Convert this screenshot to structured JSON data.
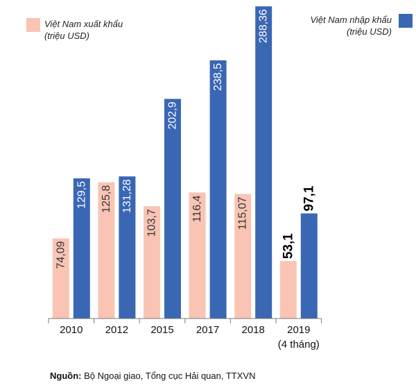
{
  "chart_data": {
    "type": "bar",
    "categories": [
      "2010",
      "2012",
      "2015",
      "2017",
      "2018",
      "2019"
    ],
    "category_sublabels": [
      "",
      "",
      "",
      "",
      "",
      "(4 tháng)"
    ],
    "series": [
      {
        "name": "Việt Nam xuất khẩu",
        "unit": "(triệu USD)",
        "color": "#f9c4b4",
        "values": [
          74.09,
          125.8,
          103.7,
          116.4,
          115.07,
          53.1
        ],
        "labels": [
          "74,09",
          "125,8",
          "103,7",
          "116,4",
          "115,07",
          "53,1"
        ]
      },
      {
        "name": "Việt Nam nhập khẩu",
        "unit": "(triệu USD)",
        "color": "#3a67b4",
        "values": [
          129.5,
          131.28,
          202.9,
          238.5,
          288.36,
          97.1
        ],
        "labels": [
          "129,5",
          "131,28",
          "202,9",
          "238,5",
          "288,36",
          "97,1"
        ]
      }
    ],
    "highlight_last_labels": true,
    "ylim": [
      0,
      300
    ],
    "axes_visible": false,
    "grid": false,
    "legend_placement": "top"
  },
  "source": {
    "label": "Nguồn:",
    "text": " Bộ Ngoại giao, Tổng cục Hải quan, TTXVN"
  }
}
